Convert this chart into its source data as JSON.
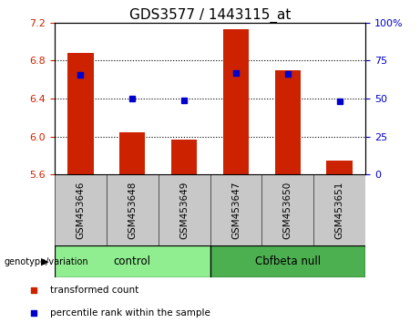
{
  "title": "GDS3577 / 1443115_at",
  "samples": [
    "GSM453646",
    "GSM453648",
    "GSM453649",
    "GSM453647",
    "GSM453650",
    "GSM453651"
  ],
  "red_values": [
    6.88,
    6.04,
    5.97,
    7.13,
    6.7,
    5.75
  ],
  "blue_values": [
    6.65,
    6.4,
    6.385,
    6.67,
    6.655,
    6.375
  ],
  "ylim_left": [
    5.6,
    7.2
  ],
  "ylim_right": [
    0,
    100
  ],
  "yticks_left": [
    5.6,
    6.0,
    6.4,
    6.8,
    7.2
  ],
  "yticks_right": [
    0,
    25,
    50,
    75,
    100
  ],
  "yticklabels_right": [
    "0",
    "25",
    "50",
    "75",
    "100%"
  ],
  "dotted_lines": [
    6.0,
    6.4,
    6.8
  ],
  "groups": [
    {
      "label": "control",
      "indices": [
        0,
        1,
        2
      ],
      "color": "#90EE90"
    },
    {
      "label": "Cbfbeta null",
      "indices": [
        3,
        4,
        5
      ],
      "color": "#4CAF50"
    }
  ],
  "group_label": "genotype/variation",
  "bar_color": "#CC2200",
  "dot_color": "#0000CC",
  "bar_bottom": 5.6,
  "legend_items": [
    {
      "label": "transformed count",
      "color": "#CC2200"
    },
    {
      "label": "percentile rank within the sample",
      "color": "#0000CC"
    }
  ],
  "background_color": "#ffffff",
  "bar_width": 0.5,
  "title_fontsize": 11,
  "tick_fontsize": 8,
  "sample_fontsize": 7.5,
  "group_fontsize": 8.5,
  "legend_fontsize": 7.5,
  "gray_box_color": "#C8C8C8",
  "box_edge_color": "#555555"
}
